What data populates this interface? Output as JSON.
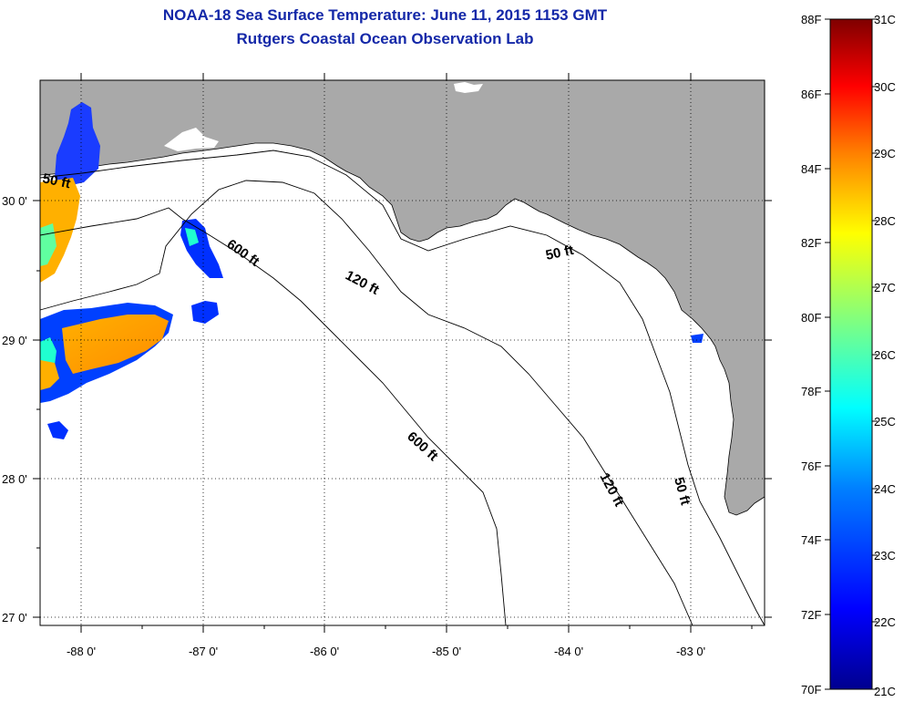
{
  "title": "NOAA-18 Sea Surface Temperature:  June 11, 2015 1153 GMT",
  "subtitle": "Rutgers Coastal Ocean Observation Lab",
  "map": {
    "lon_labels": [
      "-88 0'",
      "-87 0'",
      "-86 0'",
      "-85 0'",
      "-84 0'",
      "-83 0'"
    ],
    "lat_labels": [
      "30 0'",
      "29 0'",
      "28 0'",
      "27 0'"
    ],
    "land_color": "#a9a9a9",
    "water_color": "#ffffff",
    "contour_labels": [
      "50 ft",
      "600 ft",
      "120 ft",
      "50 ft",
      "600 ft",
      "120 ft",
      "50 ft"
    ]
  },
  "colorbar": {
    "f_labels": [
      "88F",
      "86F",
      "84F",
      "82F",
      "80F",
      "78F",
      "76F",
      "74F",
      "72F",
      "70F"
    ],
    "c_labels": [
      "31C",
      "30C",
      "29C",
      "28C",
      "27C",
      "26C",
      "25C",
      "24C",
      "23C",
      "22C",
      "21C"
    ],
    "colors": [
      "#7f0000",
      "#ff0000",
      "#ff8000",
      "#ffff00",
      "#80ff80",
      "#00ffff",
      "#0080ff",
      "#0000ff",
      "#00008f"
    ]
  }
}
